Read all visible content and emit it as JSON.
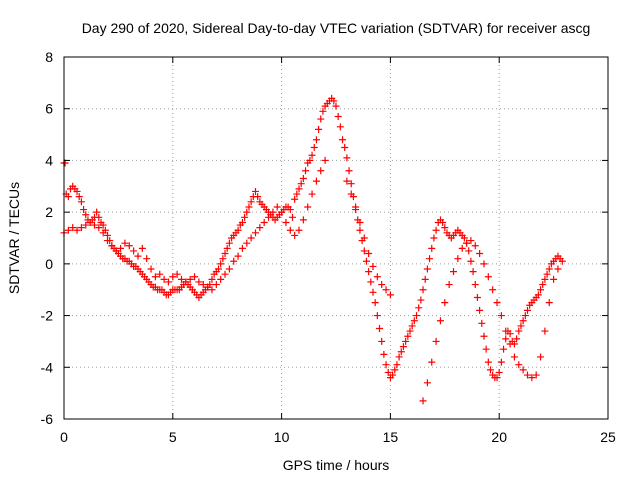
{
  "chart_data": {
    "type": "scatter",
    "title": "Day 290 of 2020, Sidereal Day-to-day VTEC variation (SDTVAR) for receiver ascg",
    "xlabel": "GPS time / hours",
    "ylabel": "SDTVAR / TECUs",
    "xlim": [
      0,
      25
    ],
    "ylim": [
      -6,
      8
    ],
    "xticks": [
      0,
      5,
      10,
      15,
      20,
      25
    ],
    "yticks": [
      -6,
      -4,
      -2,
      0,
      2,
      4,
      6,
      8
    ],
    "grid": true,
    "marker": "+",
    "color": "#ff0000",
    "series": [
      {
        "x": [
          0.0,
          0.05,
          0.1,
          0.2,
          0.3,
          0.4,
          0.5,
          0.6,
          0.7,
          0.8,
          0.9,
          1.0,
          1.1,
          1.2,
          1.3,
          1.4,
          1.5,
          1.6,
          1.7,
          1.8,
          1.9,
          2.0,
          2.1,
          2.2,
          2.3,
          2.4,
          2.5,
          2.6,
          2.7,
          2.8,
          2.9,
          3.0,
          3.1,
          3.2,
          3.3,
          3.4,
          3.5,
          3.6,
          3.7,
          3.8,
          3.9,
          4.0,
          4.1,
          4.2,
          4.3,
          4.4,
          4.5,
          4.6,
          4.7,
          4.8,
          4.9,
          5.0,
          5.1,
          5.2,
          5.3,
          5.4,
          5.5,
          5.6,
          5.7,
          5.8,
          5.9,
          6.0,
          6.1,
          6.2,
          6.3,
          6.4,
          6.5,
          6.6,
          6.7,
          6.8,
          6.9,
          7.0,
          7.1,
          7.2,
          7.3,
          7.4,
          7.5,
          7.6,
          7.7,
          7.8,
          7.9,
          8.0,
          8.1,
          8.2,
          8.3,
          8.4,
          8.5,
          8.6,
          8.7,
          8.8,
          8.9,
          9.0,
          9.1,
          9.2,
          9.3,
          9.4,
          9.5,
          9.6,
          9.7,
          9.8,
          9.9,
          10.0,
          10.1,
          10.2,
          10.3,
          10.4,
          10.5,
          10.6,
          10.7,
          10.8,
          10.9,
          11.0,
          11.1,
          11.2,
          11.3,
          11.4,
          11.5,
          11.6,
          11.7,
          11.8,
          11.9,
          12.0,
          12.1,
          12.2,
          12.3,
          12.4,
          12.5,
          12.6,
          12.7
        ],
        "y": [
          3.9,
          3.9,
          2.7,
          2.6,
          2.9,
          3.0,
          2.9,
          2.8,
          2.6,
          2.4,
          2.1,
          1.9,
          1.7,
          1.6,
          1.7,
          1.8,
          2.0,
          1.8,
          1.6,
          1.5,
          1.3,
          1.1,
          0.9,
          0.7,
          0.6,
          0.5,
          0.4,
          0.3,
          0.2,
          0.2,
          0.1,
          0.1,
          0.0,
          -0.1,
          -0.1,
          -0.2,
          -0.3,
          -0.4,
          -0.5,
          -0.6,
          -0.7,
          -0.8,
          -0.9,
          -0.9,
          -1.0,
          -1.0,
          -1.0,
          -1.1,
          -1.2,
          -1.2,
          -1.1,
          -1.0,
          -1.0,
          -1.0,
          -1.0,
          -0.9,
          -0.8,
          -0.7,
          -0.8,
          -0.9,
          -1.0,
          -1.1,
          -1.2,
          -1.3,
          -1.2,
          -1.1,
          -1.0,
          -0.9,
          -0.8,
          -0.6,
          -0.4,
          -0.3,
          -0.2,
          0.0,
          0.2,
          0.4,
          0.6,
          0.8,
          1.0,
          1.1,
          1.2,
          1.3,
          1.5,
          1.6,
          1.8,
          2.0,
          2.2,
          2.4,
          2.6,
          2.8,
          2.6,
          2.4,
          2.3,
          2.2,
          2.1,
          2.0,
          1.9,
          1.8,
          1.7,
          1.8,
          1.9,
          2.0,
          2.1,
          2.2,
          2.2,
          2.1,
          1.8,
          2.5,
          2.7,
          2.9,
          3.1,
          3.3,
          3.6,
          3.9,
          4.0,
          4.2,
          4.5,
          4.8,
          5.2,
          5.6,
          5.9,
          6.1,
          6.2,
          6.3,
          6.4,
          6.3,
          6.1,
          5.7,
          5.3
        ]
      },
      {
        "x": [
          0.0,
          0.2,
          0.4,
          0.6,
          0.8,
          1.0,
          1.2,
          1.4,
          1.6,
          1.8,
          2.0,
          2.2,
          2.4,
          2.6,
          2.8,
          3.0,
          3.2,
          3.4,
          3.6,
          3.8,
          4.0,
          4.2,
          4.4,
          4.6,
          4.8,
          5.0,
          5.2,
          5.4,
          5.6,
          5.8,
          6.0,
          6.2,
          6.4,
          6.6,
          6.8,
          7.0,
          7.2,
          7.4,
          7.6,
          7.8,
          8.0,
          8.2,
          8.4,
          8.6,
          8.8,
          9.0,
          9.2,
          9.4,
          9.6,
          9.8,
          10.0,
          10.2,
          10.4,
          10.6,
          10.8,
          11.0,
          11.2,
          11.4,
          11.6,
          11.8,
          12.0
        ],
        "y": [
          1.2,
          1.3,
          1.4,
          1.3,
          1.4,
          1.5,
          1.6,
          1.5,
          1.4,
          1.2,
          0.9,
          0.7,
          0.5,
          0.6,
          0.8,
          0.7,
          0.5,
          0.3,
          0.6,
          0.2,
          -0.2,
          -0.5,
          -0.4,
          -0.6,
          -0.7,
          -0.5,
          -0.4,
          -0.6,
          -0.7,
          -0.6,
          -0.5,
          -0.7,
          -0.8,
          -0.9,
          -1.0,
          -0.8,
          -0.6,
          -0.4,
          -0.2,
          0.1,
          0.3,
          0.6,
          0.8,
          1.0,
          1.2,
          1.4,
          1.6,
          1.8,
          2.0,
          2.2,
          2.0,
          1.6,
          1.3,
          1.1,
          1.3,
          1.7,
          2.2,
          2.7,
          3.2,
          3.6,
          4.0
        ]
      },
      {
        "x": [
          12.8,
          12.9,
          13.0,
          13.1,
          13.2,
          13.3,
          13.4,
          13.5,
          13.6,
          13.7,
          13.8,
          13.9,
          14.0,
          14.1,
          14.2,
          14.3,
          14.4,
          14.5,
          14.6,
          14.7,
          14.8,
          14.9,
          15.0,
          15.1,
          15.2,
          15.3,
          15.4,
          15.5,
          15.6,
          15.7,
          15.8,
          15.9,
          16.0,
          16.1,
          16.2,
          16.3,
          16.4,
          16.5,
          16.6,
          16.7,
          16.8,
          16.9,
          17.0,
          17.1,
          17.2,
          17.3,
          17.4,
          17.5,
          17.6,
          17.7,
          17.8,
          17.9,
          18.0,
          18.1,
          18.2,
          18.3,
          18.4,
          18.5,
          18.6,
          18.7,
          18.8,
          18.9,
          19.0,
          19.1,
          19.2,
          19.3,
          19.4,
          19.5,
          19.6,
          19.7,
          19.8,
          19.9,
          20.0,
          20.1,
          20.2,
          20.3,
          20.4,
          20.5,
          20.6,
          20.7,
          20.8,
          20.9,
          21.0,
          21.1,
          21.2,
          21.3,
          21.4,
          21.5,
          21.6,
          21.7,
          21.8,
          21.9,
          22.0,
          22.1,
          22.2,
          22.3,
          22.4,
          22.5,
          22.6,
          22.7,
          22.8,
          22.9
        ],
        "y": [
          4.8,
          4.5,
          4.1,
          3.6,
          3.1,
          2.6,
          2.1,
          1.7,
          1.3,
          0.9,
          0.5,
          0.1,
          -0.3,
          -0.7,
          -1.1,
          -1.5,
          -2.0,
          -2.5,
          -3.0,
          -3.5,
          -3.9,
          -4.2,
          -4.4,
          -4.3,
          -4.1,
          -3.9,
          -3.6,
          -3.4,
          -3.2,
          -3.0,
          -2.8,
          -2.6,
          -2.4,
          -2.2,
          -2.0,
          -1.7,
          -1.4,
          -1.0,
          -0.6,
          -0.2,
          0.2,
          0.6,
          1.0,
          1.3,
          1.6,
          1.7,
          1.6,
          1.4,
          1.2,
          1.1,
          1.0,
          1.1,
          1.2,
          1.3,
          1.2,
          1.1,
          1.0,
          0.8,
          0.5,
          0.1,
          -0.3,
          -0.8,
          -1.3,
          -1.8,
          -2.3,
          -2.8,
          -3.3,
          -3.8,
          -4.1,
          -4.3,
          -4.4,
          -4.4,
          -4.2,
          -3.8,
          -3.3,
          -2.9,
          -2.6,
          -2.7,
          -3.0,
          -3.1,
          -2.9,
          -2.6,
          -2.4,
          -2.2,
          -2.0,
          -1.8,
          -1.6,
          -1.5,
          -1.4,
          -1.3,
          -1.2,
          -1.0,
          -0.8,
          -0.6,
          -0.4,
          -0.2,
          0.0,
          0.1,
          0.2,
          0.3,
          0.2,
          0.1
        ]
      },
      {
        "x": [
          13.0,
          13.2,
          13.4,
          13.6,
          13.8,
          14.0,
          14.2,
          14.4,
          14.6,
          14.8,
          15.0,
          16.5,
          16.7,
          16.9,
          17.1,
          17.3,
          17.5,
          17.7,
          17.9,
          18.1,
          18.3,
          18.5,
          18.7,
          18.9,
          19.1,
          19.3,
          19.5,
          19.7,
          19.9,
          20.1,
          20.3,
          20.5,
          20.7,
          20.9,
          21.1,
          21.3,
          21.5,
          21.7,
          21.9,
          22.1,
          22.3,
          22.5,
          22.7
        ],
        "y": [
          3.2,
          2.7,
          2.2,
          1.6,
          1.0,
          0.4,
          -0.1,
          -0.5,
          -0.8,
          -1.0,
          -1.2,
          -5.3,
          -4.6,
          -3.8,
          -3.0,
          -2.2,
          -1.5,
          -0.8,
          -0.3,
          0.2,
          0.6,
          0.8,
          0.9,
          0.7,
          0.4,
          0.0,
          -0.5,
          -1.0,
          -1.5,
          -2.0,
          -2.6,
          -3.1,
          -3.6,
          -3.9,
          -4.1,
          -4.3,
          -4.4,
          -4.3,
          -3.6,
          -2.6,
          -1.5,
          -0.6,
          -0.2
        ]
      }
    ]
  }
}
